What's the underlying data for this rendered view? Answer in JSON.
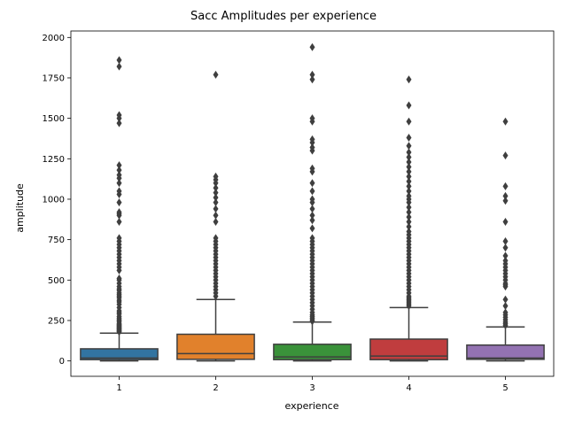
{
  "chart_data": {
    "type": "box",
    "title": "Sacc Amplitudes per experience",
    "xlabel": "experience",
    "ylabel": "amplitude",
    "categories": [
      "1",
      "2",
      "3",
      "4",
      "5"
    ],
    "ylim": [
      -95,
      2040
    ],
    "yticks": [
      0,
      250,
      500,
      750,
      1000,
      1250,
      1500,
      1750,
      2000
    ],
    "boxes": [
      {
        "category": "1",
        "color": "#3274a1",
        "min": 0,
        "q1": 8,
        "median": 18,
        "q3": 75,
        "whisker_high": 172,
        "outliers": [
          180,
          185,
          190,
          195,
          200,
          205,
          210,
          215,
          220,
          225,
          230,
          240,
          250,
          255,
          265,
          275,
          290,
          300,
          310,
          330,
          350,
          365,
          375,
          390,
          400,
          410,
          420,
          435,
          445,
          460,
          480,
          500,
          510,
          560,
          580,
          600,
          620,
          640,
          660,
          680,
          700,
          720,
          740,
          760,
          860,
          900,
          910,
          920,
          980,
          1030,
          1050,
          1100,
          1130,
          1150,
          1180,
          1210,
          1470,
          1500,
          1520,
          1820,
          1860
        ]
      },
      {
        "category": "2",
        "color": "#e1812c",
        "min": 0,
        "q1": 10,
        "median": 45,
        "q3": 165,
        "whisker_high": 380,
        "outliers": [
          400,
          420,
          440,
          460,
          480,
          500,
          520,
          540,
          560,
          580,
          600,
          620,
          640,
          660,
          680,
          700,
          720,
          740,
          760,
          860,
          900,
          940,
          980,
          1010,
          1040,
          1070,
          1100,
          1120,
          1140,
          1770
        ]
      },
      {
        "category": "3",
        "color": "#3a923a",
        "min": 0,
        "q1": 8,
        "median": 25,
        "q3": 103,
        "whisker_high": 240,
        "outliers": [
          245,
          255,
          265,
          275,
          285,
          300,
          320,
          340,
          360,
          380,
          400,
          420,
          440,
          460,
          480,
          500,
          520,
          540,
          560,
          580,
          600,
          620,
          640,
          660,
          680,
          700,
          720,
          740,
          760,
          820,
          870,
          900,
          940,
          980,
          1000,
          1050,
          1100,
          1170,
          1190,
          1300,
          1320,
          1350,
          1370,
          1480,
          1500,
          1740,
          1770,
          1940
        ]
      },
      {
        "category": "4",
        "color": "#c03d3e",
        "min": 0,
        "q1": 8,
        "median": 30,
        "q3": 135,
        "whisker_high": 330,
        "outliers": [
          340,
          350,
          360,
          370,
          380,
          390,
          400,
          420,
          440,
          460,
          480,
          500,
          520,
          540,
          560,
          580,
          600,
          620,
          640,
          660,
          680,
          700,
          720,
          740,
          760,
          780,
          800,
          830,
          860,
          890,
          920,
          950,
          980,
          1000,
          1020,
          1050,
          1080,
          1110,
          1140,
          1170,
          1200,
          1230,
          1260,
          1290,
          1330,
          1380,
          1480,
          1580,
          1740
        ]
      },
      {
        "category": "5",
        "color": "#9372b2",
        "min": 0,
        "q1": 10,
        "median": 18,
        "q3": 98,
        "whisker_high": 210,
        "outliers": [
          220,
          230,
          240,
          255,
          270,
          285,
          300,
          340,
          380,
          460,
          470,
          480,
          500,
          520,
          540,
          560,
          580,
          600,
          620,
          650,
          700,
          740,
          860,
          990,
          1020,
          1080,
          1270,
          1480
        ]
      }
    ]
  }
}
